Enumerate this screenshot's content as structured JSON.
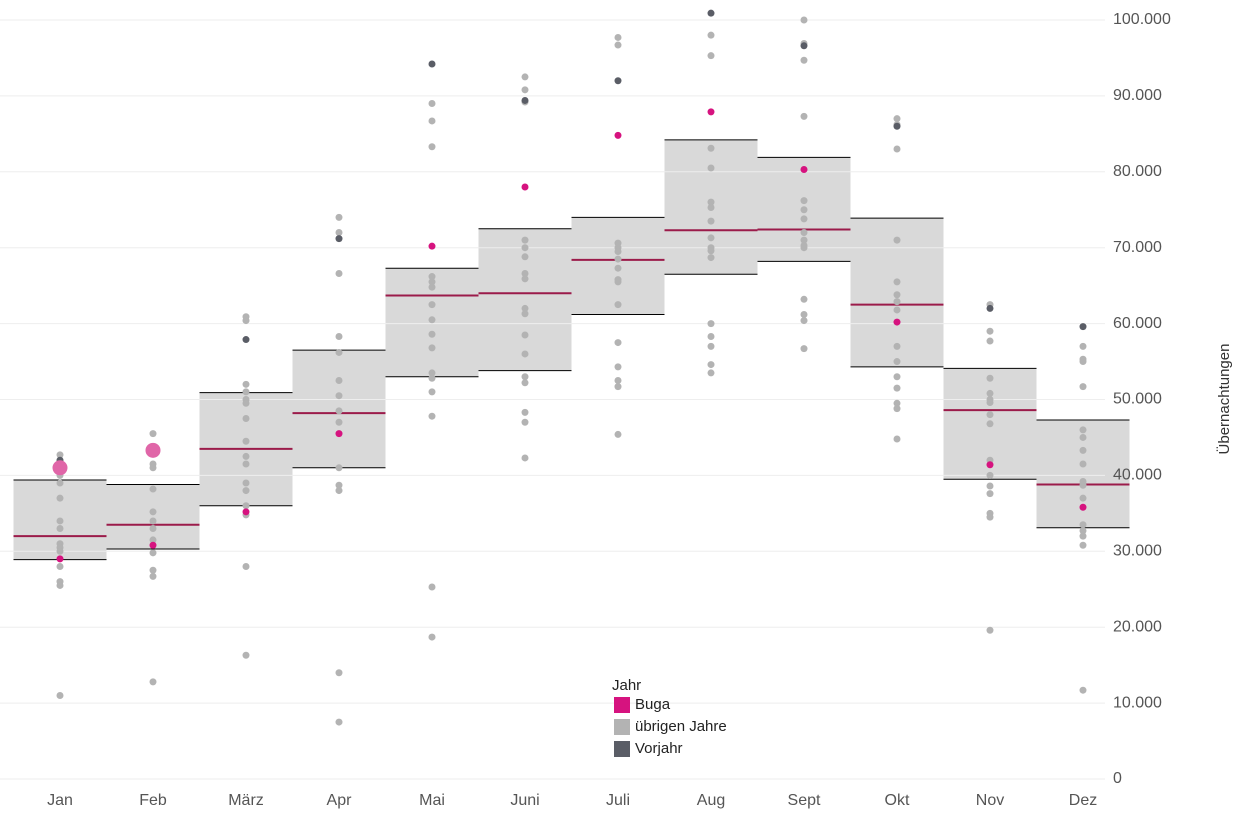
{
  "chart_data": {
    "type": "box",
    "categories": [
      "Jan",
      "Feb",
      "März",
      "Apr",
      "Mai",
      "Juni",
      "Juli",
      "Aug",
      "Sept",
      "Okt",
      "Nov",
      "Dez"
    ],
    "box_low": [
      28900,
      30300,
      36000,
      41000,
      53000,
      53800,
      61200,
      66500,
      68200,
      54300,
      39500,
      33100
    ],
    "box_median": [
      32000,
      33500,
      43500,
      48200,
      63700,
      64000,
      68400,
      72300,
      72400,
      62500,
      48600,
      38800
    ],
    "box_high": [
      39400,
      38800,
      50900,
      56500,
      67300,
      72500,
      74000,
      84200,
      81900,
      73900,
      54100,
      47300
    ],
    "box_color": "#d9d9d9",
    "median_color": "#9b1b4a",
    "ylim": [
      0,
      100000
    ],
    "yticks": [
      0,
      {
        "value": 10000,
        "label": "10.000"
      },
      {
        "value": 20000,
        "label": "20.000"
      },
      {
        "value": 30000,
        "label": "30.000"
      },
      {
        "value": 40000,
        "label": "40.000"
      },
      {
        "value": 50000,
        "label": "50.000"
      },
      {
        "value": 60000,
        "label": "60.000"
      },
      {
        "value": 70000,
        "label": "70.000"
      },
      {
        "value": 80000,
        "label": "80.000"
      },
      {
        "value": 90000,
        "label": "90.000"
      },
      {
        "value": 100000,
        "label": "100.000"
      }
    ],
    "ylabel": "Übernachtungen",
    "grid": true,
    "legend_title": "Jahr",
    "series": [
      {
        "name": "Buga",
        "color": "#d6137f",
        "values": [
          29000,
          30800,
          35200,
          45500,
          70200,
          78000,
          84800,
          87900,
          80300,
          60200,
          41400,
          35800
        ]
      },
      {
        "name": "übrigen Jahre",
        "color": "#b3b3b3",
        "values": [
          [
            42700,
            41500,
            40000,
            39000,
            37000,
            34000,
            33000,
            31000,
            30500,
            30000,
            28000,
            26000,
            25500,
            11000
          ],
          [
            45500,
            41500,
            41000,
            38200,
            35200,
            34000,
            33000,
            31500,
            29800,
            27500,
            26700,
            12800
          ],
          [
            60900,
            60400,
            52000,
            51000,
            50000,
            49500,
            47500,
            44500,
            42500,
            41500,
            39000,
            38000,
            36000,
            34800,
            28000,
            16300
          ],
          [
            74000,
            72000,
            66600,
            58300,
            56200,
            52500,
            50500,
            48500,
            47000,
            41000,
            38700,
            38000,
            14000,
            7500
          ],
          [
            89000,
            86700,
            83300,
            66200,
            65500,
            64800,
            62500,
            60500,
            58600,
            56800,
            53500,
            52800,
            51000,
            47800,
            25300,
            18700
          ],
          [
            92500,
            90800,
            89200,
            71000,
            70000,
            68800,
            66600,
            65900,
            62000,
            61300,
            58500,
            56000,
            53000,
            52200,
            48300,
            47000,
            42300
          ],
          [
            97700,
            96700,
            70600,
            70000,
            69500,
            68500,
            67300,
            65800,
            65500,
            62500,
            57500,
            54300,
            52500,
            51700,
            45400
          ],
          [
            98000,
            95300,
            83100,
            80500,
            76000,
            75300,
            73500,
            71300,
            70000,
            69600,
            68700,
            60000,
            58300,
            57000,
            54600,
            53500
          ],
          [
            100000,
            96900,
            94700,
            87300,
            76200,
            75000,
            73800,
            72000,
            71000,
            70300,
            70000,
            63200,
            61200,
            60400,
            56700
          ],
          [
            87000,
            86200,
            83000,
            71000,
            65500,
            63800,
            62900,
            61800,
            57000,
            55000,
            53000,
            51500,
            49500,
            48800,
            44800
          ],
          [
            62500,
            59000,
            57700,
            52800,
            50800,
            50000,
            49600,
            48000,
            46800,
            42000,
            40000,
            38600,
            37600,
            35000,
            34500,
            19600
          ],
          [
            57000,
            55300,
            55000,
            51700,
            46000,
            45000,
            43300,
            41500,
            39200,
            38700,
            37000,
            33500,
            32700,
            32000,
            30800,
            11700
          ]
        ]
      },
      {
        "name": "Vorjahr",
        "color": "#5a5d66",
        "values": [
          42000,
          null,
          57900,
          71200,
          94200,
          89400,
          92000,
          100900,
          96600,
          86000,
          62000,
          59600
        ]
      }
    ],
    "highlight": {
      "color": "#e066a8",
      "values": [
        41000,
        43300,
        null,
        null,
        null,
        null,
        null,
        null,
        null,
        null,
        null,
        null
      ]
    }
  }
}
